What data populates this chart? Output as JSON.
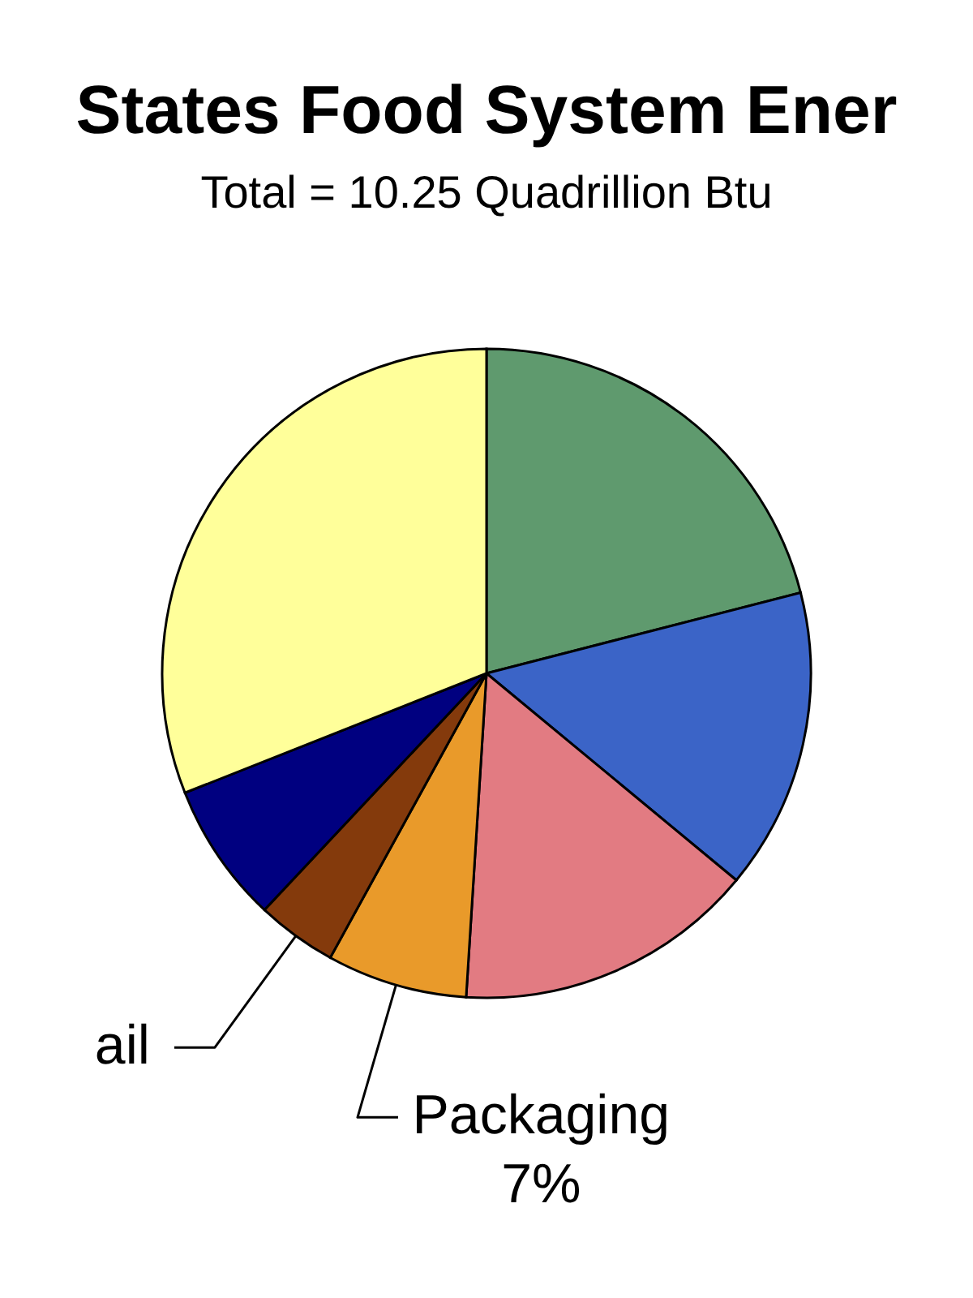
{
  "chart_data": {
    "type": "pie",
    "title": "States Food System Ener",
    "subtitle": "Total = 10.25 Quadrillion Btu",
    "categories": [
      null,
      null,
      null,
      "Packaging",
      "ail",
      null,
      null
    ],
    "values": [
      21,
      15,
      15,
      7,
      4,
      7,
      31
    ],
    "colors": [
      "#5f9a6e",
      "#3b64c7",
      "#e27b82",
      "#e99a2a",
      "#843a0c",
      "#000080",
      "#ffff9a"
    ],
    "value_labels": [
      null,
      null,
      null,
      "7%",
      null,
      null,
      null
    ]
  }
}
